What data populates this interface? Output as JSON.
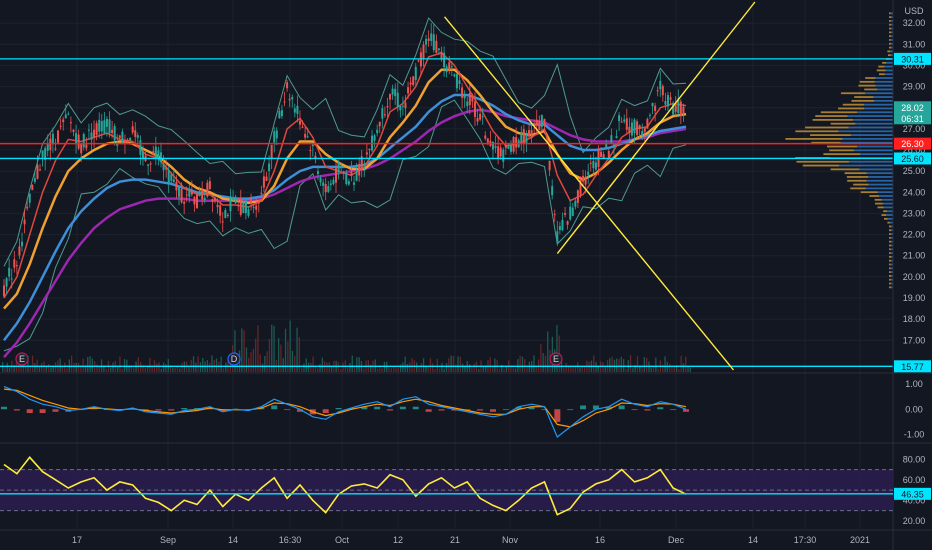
{
  "chart_data": {
    "type": "line",
    "currency": "USD",
    "colors": {
      "background": "#131722",
      "grid": "#1e222d",
      "candle_up": "#26a69a",
      "candle_down": "#ef5350",
      "ma_fast": "#e0473c",
      "ma_mid": "#f0a030",
      "ma_slow": "#3d8fd8",
      "ma_long": "#9c27b0",
      "bands": "#4e9a8e",
      "level": "#00e5ff",
      "red_level": "#ff1f1f",
      "trend": "#ffeb3b",
      "rsi_line": "#ffeb3b",
      "rsi_fill": "#2a1d4d"
    },
    "time_axis_labels": [
      "17",
      "Sep",
      "14",
      "16:30",
      "Oct",
      "12",
      "21",
      "Nov",
      "16",
      "Dec",
      "14",
      "17:30",
      "2021"
    ],
    "price_panel": {
      "ylim": [
        15.5,
        33
      ],
      "tick_labels": [
        "32.00",
        "31.00",
        "30.00",
        "29.00",
        "28.00",
        "27.00",
        "26.00",
        "25.00",
        "24.00",
        "23.00",
        "22.00",
        "21.00",
        "20.00",
        "19.00",
        "18.00",
        "17.00"
      ],
      "closes": [
        19.5,
        20.8,
        23.5,
        25.8,
        26.5,
        27.5,
        26.2,
        27.0,
        27.2,
        26.5,
        26.8,
        25.5,
        26.0,
        24.5,
        23.8,
        23.6,
        24.2,
        23.0,
        23.5,
        23.2,
        23.8,
        26.5,
        29.0,
        27.5,
        26.0,
        24.0,
        25.0,
        24.6,
        25.5,
        27.0,
        28.8,
        28.0,
        29.6,
        31.5,
        30.5,
        29.5,
        28.5,
        27.5,
        26.0,
        25.8,
        26.5,
        26.8,
        27.5,
        22.0,
        23.0,
        24.5,
        25.5,
        26.0,
        27.5,
        27.0,
        27.2,
        29.0,
        28.0,
        28.02
      ],
      "sma_fast": [
        19.0,
        20.0,
        22.0,
        24.0,
        25.5,
        26.5,
        26.4,
        26.6,
        26.8,
        26.5,
        26.4,
        25.8,
        25.6,
        24.9,
        24.2,
        23.9,
        23.9,
        23.4,
        23.4,
        23.3,
        23.6,
        25.0,
        27.0,
        27.5,
        26.6,
        25.2,
        25.0,
        24.8,
        25.2,
        26.2,
        27.8,
        28.2,
        29.0,
        30.4,
        30.6,
        30.0,
        29.0,
        28.0,
        26.9,
        26.2,
        26.3,
        26.6,
        27.0,
        24.8,
        23.6,
        23.9,
        24.8,
        25.6,
        26.6,
        27.0,
        27.1,
        28.0,
        28.2,
        28.1
      ],
      "sma_mid": [
        18.5,
        19.2,
        20.6,
        22.3,
        23.8,
        25.0,
        25.6,
        26.0,
        26.3,
        26.4,
        26.3,
        26.0,
        25.7,
        25.2,
        24.6,
        24.2,
        24.0,
        23.7,
        23.6,
        23.5,
        23.6,
        24.3,
        25.6,
        26.4,
        26.4,
        25.8,
        25.4,
        25.1,
        25.1,
        25.6,
        26.6,
        27.3,
        28.1,
        29.2,
        29.8,
        29.8,
        29.3,
        28.6,
        27.8,
        27.1,
        26.8,
        26.7,
        26.9,
        25.8,
        24.9,
        24.6,
        24.9,
        25.4,
        26.0,
        26.5,
        26.8,
        27.3,
        27.6,
        27.7
      ],
      "sma_slow": [
        17.0,
        17.8,
        18.8,
        20.0,
        21.2,
        22.3,
        23.1,
        23.7,
        24.2,
        24.5,
        24.6,
        24.6,
        24.5,
        24.4,
        24.2,
        24.0,
        23.9,
        23.8,
        23.7,
        23.7,
        23.8,
        24.1,
        24.6,
        25.0,
        25.2,
        25.2,
        25.2,
        25.2,
        25.3,
        25.6,
        26.1,
        26.6,
        27.1,
        27.8,
        28.3,
        28.6,
        28.6,
        28.4,
        28.1,
        27.7,
        27.4,
        27.2,
        27.2,
        26.7,
        26.2,
        26.0,
        26.0,
        26.1,
        26.3,
        26.5,
        26.7,
        26.9,
        27.0,
        27.1
      ],
      "sma_long": [
        16.2,
        16.9,
        17.8,
        18.8,
        19.8,
        20.8,
        21.6,
        22.3,
        22.8,
        23.2,
        23.4,
        23.6,
        23.7,
        23.7,
        23.7,
        23.6,
        23.6,
        23.6,
        23.6,
        23.6,
        23.7,
        23.9,
        24.2,
        24.5,
        24.7,
        24.8,
        24.9,
        25.0,
        25.1,
        25.3,
        25.6,
        26.0,
        26.4,
        26.9,
        27.3,
        27.6,
        27.8,
        27.9,
        27.8,
        27.6,
        27.5,
        27.4,
        27.3,
        27.0,
        26.7,
        26.5,
        26.4,
        26.4,
        26.4,
        26.5,
        26.6,
        26.8,
        26.9,
        27.0
      ],
      "levels": [
        {
          "price": 30.31,
          "label": "30.31",
          "color": "#00e5ff"
        },
        {
          "price": 26.3,
          "label": "26.30",
          "color": "#ff1f1f"
        },
        {
          "price": 25.6,
          "label": "25.60",
          "color": "#00e5ff"
        },
        {
          "price": 15.77,
          "label": "15.77",
          "color": "#00e5ff"
        }
      ],
      "price_badges": [
        {
          "price": 28.02,
          "label": "28.02",
          "bg": "#26a69a"
        },
        {
          "price": 27.5,
          "label": "06:31",
          "bg": "#26a69a"
        }
      ],
      "trendlines": [
        {
          "x1": 0.477,
          "y1": 32.3,
          "x2": 0.787,
          "y2": 15.6
        },
        {
          "x1": 0.598,
          "y1": 21.1,
          "x2": 0.81,
          "y2": 33.0
        }
      ],
      "event_markers": [
        "E",
        "D",
        "E"
      ]
    },
    "macd_panel": {
      "ylim": [
        -1.3,
        1.4
      ],
      "tick_labels": [
        "1.00",
        "0.00",
        "-1.00"
      ],
      "macd": [
        0.9,
        0.7,
        0.4,
        0.2,
        0.1,
        -0.05,
        0.0,
        0.1,
        0.0,
        -0.05,
        0.05,
        -0.1,
        -0.15,
        -0.2,
        -0.05,
        0.0,
        0.1,
        -0.1,
        0.0,
        -0.05,
        0.1,
        0.4,
        0.2,
        0.0,
        -0.3,
        -0.4,
        -0.1,
        0.05,
        0.2,
        0.3,
        0.1,
        0.4,
        0.5,
        0.2,
        0.1,
        0.0,
        -0.1,
        -0.2,
        -0.3,
        -0.2,
        0.1,
        0.2,
        0.1,
        -1.1,
        -0.7,
        -0.3,
        0.0,
        0.1,
        0.4,
        0.2,
        0.1,
        0.3,
        0.2,
        0.0
      ],
      "signal": [
        0.8,
        0.75,
        0.55,
        0.35,
        0.2,
        0.05,
        0.0,
        0.05,
        0.02,
        -0.02,
        0.02,
        -0.05,
        -0.1,
        -0.15,
        -0.1,
        -0.05,
        0.05,
        -0.02,
        -0.02,
        -0.03,
        0.05,
        0.25,
        0.22,
        0.1,
        -0.1,
        -0.25,
        -0.15,
        0.0,
        0.1,
        0.2,
        0.15,
        0.3,
        0.4,
        0.3,
        0.15,
        0.05,
        -0.05,
        -0.15,
        -0.2,
        -0.2,
        0.0,
        0.1,
        0.1,
        -0.6,
        -0.7,
        -0.45,
        -0.15,
        0.0,
        0.25,
        0.22,
        0.15,
        0.22,
        0.2,
        0.1
      ]
    },
    "rsi_panel": {
      "ylim": [
        12,
        95
      ],
      "tick_labels": [
        "80.00",
        "60.00",
        "40.00",
        "20.00"
      ],
      "band": [
        30,
        70
      ],
      "level": {
        "value": 46.35,
        "label": "46.35"
      },
      "values": [
        75,
        66,
        82,
        68,
        60,
        52,
        58,
        62,
        50,
        58,
        55,
        42,
        38,
        30,
        40,
        36,
        50,
        34,
        46,
        40,
        52,
        62,
        42,
        55,
        40,
        28,
        46,
        54,
        56,
        52,
        65,
        60,
        44,
        56,
        62,
        52,
        58,
        42,
        35,
        30,
        40,
        52,
        58,
        26,
        32,
        48,
        56,
        60,
        70,
        58,
        62,
        70,
        52,
        46
      ]
    }
  }
}
